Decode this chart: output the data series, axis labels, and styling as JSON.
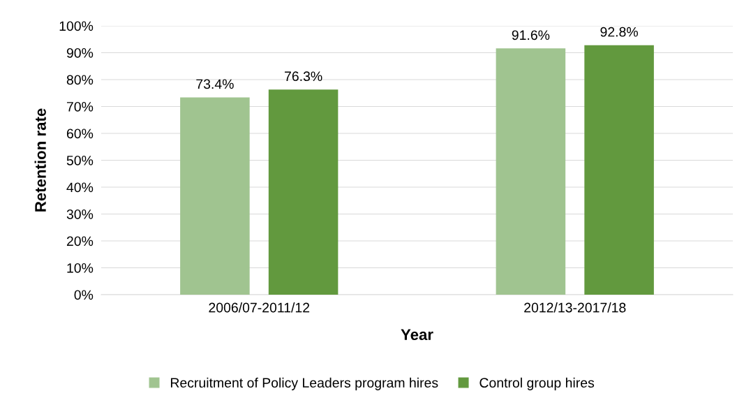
{
  "chart_data": {
    "type": "bar",
    "xlabel": "Year",
    "ylabel": "Retention rate",
    "categories": [
      "2006/07-2011/12",
      "2012/13-2017/18"
    ],
    "series": [
      {
        "name": "Recruitment of Policy Leaders program hires",
        "color": "#a0c490",
        "values": [
          73.4,
          91.6
        ],
        "value_labels": [
          "73.4%",
          "91.6%"
        ]
      },
      {
        "name": "Control group hires",
        "color": "#62993e",
        "values": [
          76.3,
          92.8
        ],
        "value_labels": [
          "76.3%",
          "92.8%"
        ]
      }
    ],
    "ylim": [
      0,
      100
    ],
    "yticks": [
      {
        "value": 0,
        "label": "0%"
      },
      {
        "value": 10,
        "label": "10%"
      },
      {
        "value": 20,
        "label": "20%"
      },
      {
        "value": 30,
        "label": "30%"
      },
      {
        "value": 40,
        "label": "40%"
      },
      {
        "value": 50,
        "label": "50%"
      },
      {
        "value": 60,
        "label": "60%"
      },
      {
        "value": 70,
        "label": "70%"
      },
      {
        "value": 80,
        "label": "80%"
      },
      {
        "value": 90,
        "label": "90%"
      },
      {
        "value": 100,
        "label": "100%"
      }
    ],
    "grid": "y",
    "legend": "bottom"
  }
}
